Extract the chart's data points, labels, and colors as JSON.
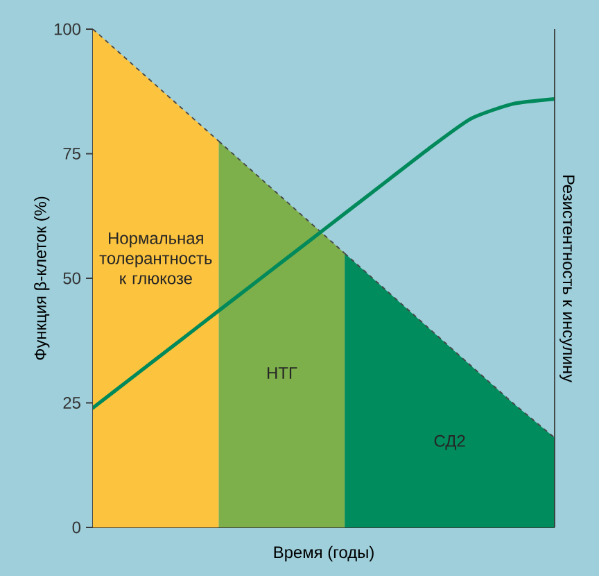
{
  "chart_data": {
    "type": "area",
    "xlabel": "Время (годы)",
    "ylabel": "Функция β-клеток (%)",
    "y2label": "Резистентность к инсулину",
    "categories": [
      null,
      null,
      null,
      null,
      null,
      null,
      null,
      null,
      null,
      null,
      null,
      null
    ],
    "ylim": [
      0,
      100
    ],
    "yticks": [
      0,
      25,
      50,
      75,
      100
    ],
    "grid": false,
    "marker": "none",
    "series": [
      {
        "name": "Нормальная толерантность к глюкозе",
        "color": "#fcc33e",
        "line_style": "dashed",
        "values": [
          100,
          92.5,
          85,
          77.5,
          null,
          null,
          null,
          null,
          null,
          null,
          null,
          null
        ]
      },
      {
        "name": "НТГ",
        "color": "#7daf4a",
        "line_style": "dashed",
        "values": [
          null,
          null,
          null,
          77.5,
          70,
          62.5,
          55,
          null,
          null,
          null,
          null,
          null
        ]
      },
      {
        "name": "СД2",
        "color": "#008c5c",
        "line_style": "dashed",
        "values": [
          null,
          null,
          null,
          null,
          null,
          null,
          55,
          47.5,
          40,
          32.5,
          25,
          18
        ]
      },
      {
        "type": "line",
        "color": "#00895a",
        "line_style": "solid",
        "values": [
          24,
          30.5,
          37,
          43.5,
          50,
          56.5,
          63,
          69.5,
          76,
          82,
          85,
          86
        ]
      }
    ]
  }
}
